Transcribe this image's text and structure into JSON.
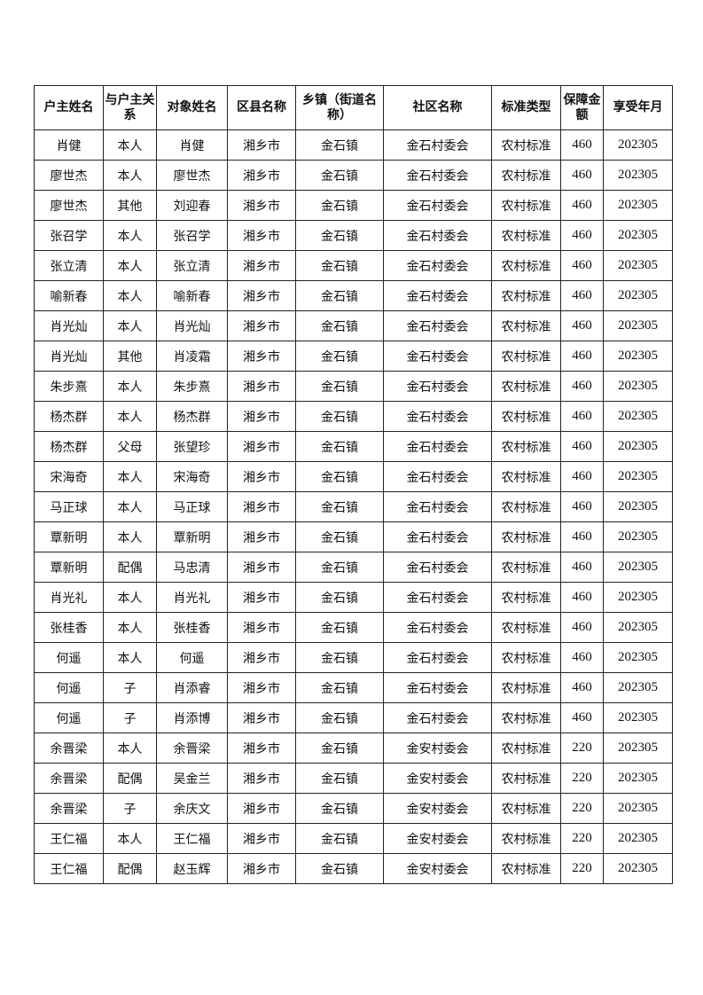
{
  "table": {
    "headers": [
      "户主姓名",
      "与户主关系",
      "对象姓名",
      "区县名称",
      "乡镇（街道名称）",
      "社区名称",
      "标准类型",
      "保障金额",
      "享受年月"
    ],
    "rows": [
      [
        "肖健",
        "本人",
        "肖健",
        "湘乡市",
        "金石镇",
        "金石村委会",
        "农村标准",
        "460",
        "202305"
      ],
      [
        "廖世杰",
        "本人",
        "廖世杰",
        "湘乡市",
        "金石镇",
        "金石村委会",
        "农村标准",
        "460",
        "202305"
      ],
      [
        "廖世杰",
        "其他",
        "刘迎春",
        "湘乡市",
        "金石镇",
        "金石村委会",
        "农村标准",
        "460",
        "202305"
      ],
      [
        "张召学",
        "本人",
        "张召学",
        "湘乡市",
        "金石镇",
        "金石村委会",
        "农村标准",
        "460",
        "202305"
      ],
      [
        "张立清",
        "本人",
        "张立清",
        "湘乡市",
        "金石镇",
        "金石村委会",
        "农村标准",
        "460",
        "202305"
      ],
      [
        "喻新春",
        "本人",
        "喻新春",
        "湘乡市",
        "金石镇",
        "金石村委会",
        "农村标准",
        "460",
        "202305"
      ],
      [
        "肖光灿",
        "本人",
        "肖光灿",
        "湘乡市",
        "金石镇",
        "金石村委会",
        "农村标准",
        "460",
        "202305"
      ],
      [
        "肖光灿",
        "其他",
        "肖凌霜",
        "湘乡市",
        "金石镇",
        "金石村委会",
        "农村标准",
        "460",
        "202305"
      ],
      [
        "朱步熹",
        "本人",
        "朱步熹",
        "湘乡市",
        "金石镇",
        "金石村委会",
        "农村标准",
        "460",
        "202305"
      ],
      [
        "杨杰群",
        "本人",
        "杨杰群",
        "湘乡市",
        "金石镇",
        "金石村委会",
        "农村标准",
        "460",
        "202305"
      ],
      [
        "杨杰群",
        "父母",
        "张望珍",
        "湘乡市",
        "金石镇",
        "金石村委会",
        "农村标准",
        "460",
        "202305"
      ],
      [
        "宋海奇",
        "本人",
        "宋海奇",
        "湘乡市",
        "金石镇",
        "金石村委会",
        "农村标准",
        "460",
        "202305"
      ],
      [
        "马正球",
        "本人",
        "马正球",
        "湘乡市",
        "金石镇",
        "金石村委会",
        "农村标准",
        "460",
        "202305"
      ],
      [
        "覃新明",
        "本人",
        "覃新明",
        "湘乡市",
        "金石镇",
        "金石村委会",
        "农村标准",
        "460",
        "202305"
      ],
      [
        "覃新明",
        "配偶",
        "马忠清",
        "湘乡市",
        "金石镇",
        "金石村委会",
        "农村标准",
        "460",
        "202305"
      ],
      [
        "肖光礼",
        "本人",
        "肖光礼",
        "湘乡市",
        "金石镇",
        "金石村委会",
        "农村标准",
        "460",
        "202305"
      ],
      [
        "张桂香",
        "本人",
        "张桂香",
        "湘乡市",
        "金石镇",
        "金石村委会",
        "农村标准",
        "460",
        "202305"
      ],
      [
        "何遥",
        "本人",
        "何遥",
        "湘乡市",
        "金石镇",
        "金石村委会",
        "农村标准",
        "460",
        "202305"
      ],
      [
        "何遥",
        "子",
        "肖添睿",
        "湘乡市",
        "金石镇",
        "金石村委会",
        "农村标准",
        "460",
        "202305"
      ],
      [
        "何遥",
        "子",
        "肖添博",
        "湘乡市",
        "金石镇",
        "金石村委会",
        "农村标准",
        "460",
        "202305"
      ],
      [
        "余晋梁",
        "本人",
        "余晋梁",
        "湘乡市",
        "金石镇",
        "金安村委会",
        "农村标准",
        "220",
        "202305"
      ],
      [
        "余晋梁",
        "配偶",
        "吴金兰",
        "湘乡市",
        "金石镇",
        "金安村委会",
        "农村标准",
        "220",
        "202305"
      ],
      [
        "余晋梁",
        "子",
        "余庆文",
        "湘乡市",
        "金石镇",
        "金安村委会",
        "农村标准",
        "220",
        "202305"
      ],
      [
        "王仁福",
        "本人",
        "王仁福",
        "湘乡市",
        "金石镇",
        "金安村委会",
        "农村标准",
        "220",
        "202305"
      ],
      [
        "王仁福",
        "配偶",
        "赵玉辉",
        "湘乡市",
        "金石镇",
        "金安村委会",
        "农村标准",
        "220",
        "202305"
      ]
    ]
  }
}
